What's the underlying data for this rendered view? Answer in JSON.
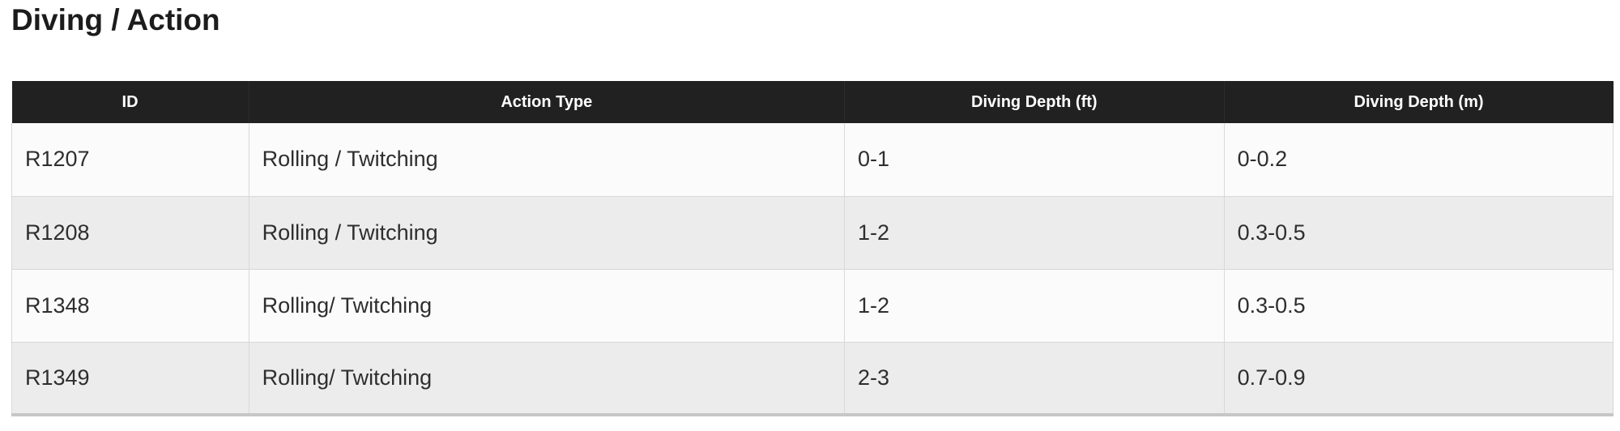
{
  "page": {
    "title": "Diving / Action"
  },
  "table": {
    "columns": [
      {
        "label": "ID"
      },
      {
        "label": "Action Type"
      },
      {
        "label": "Diving Depth (ft)"
      },
      {
        "label": "Diving Depth (m)"
      }
    ],
    "rows": [
      {
        "id": "R1207",
        "action_type": "Rolling / Twitching",
        "depth_ft": "0-1",
        "depth_m": "0-0.2"
      },
      {
        "id": "R1208",
        "action_type": "Rolling / Twitching",
        "depth_ft": "1-2",
        "depth_m": "0.3-0.5"
      },
      {
        "id": "R1348",
        "action_type": "Rolling/ Twitching",
        "depth_ft": "1-2",
        "depth_m": "0.3-0.5"
      },
      {
        "id": "R1349",
        "action_type": "Rolling/ Twitching",
        "depth_ft": "2-3",
        "depth_m": "0.7-0.9"
      }
    ]
  },
  "colors": {
    "header_bg": "#212121",
    "header_text": "#ffffff",
    "row_light_bg": "#fbfbfb",
    "row_dark_bg": "#ececec",
    "cell_border": "#d8d8d8",
    "table_bottom_border": "#c6c6c6",
    "body_text": "#2e2e2e",
    "title_text": "#1c1c1c"
  }
}
